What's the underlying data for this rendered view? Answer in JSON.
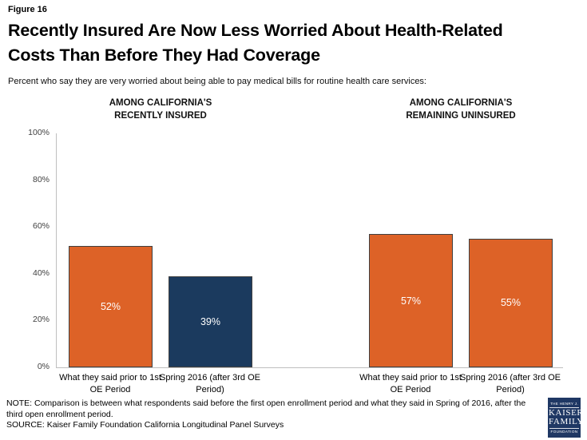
{
  "figure_label": "Figure 16",
  "title_line1": "Recently Insured Are Now Less Worried About Health-Related",
  "title_line2": "Costs Than Before They Had Coverage",
  "subtitle": "Percent who say they are very worried about being able to pay medical bills for routine health care services:",
  "colors": {
    "orange": "#dd6227",
    "navy": "#1b3a5e",
    "axis_gray": "#bfbfbf",
    "bar_border": "#404040",
    "logo_navy": "#1f3864"
  },
  "chart_data": {
    "type": "bar",
    "title": "",
    "ylabel": "",
    "xlabel": "",
    "ylim": [
      0,
      100
    ],
    "grid": false,
    "ytick_labels": [
      "100%",
      "80%",
      "60%",
      "40%",
      "20%",
      "0%"
    ],
    "groups": [
      {
        "header_line1": "AMONG CALIFORNIA'S",
        "header_line2": "RECENTLY INSURED",
        "bars": [
          {
            "category": "What they said prior to 1st OE Period",
            "value": 52,
            "label": "52%",
            "color": "#dd6227"
          },
          {
            "category": "Spring 2016 (after 3rd OE Period)",
            "value": 39,
            "label": "39%",
            "color": "#1b3a5e"
          }
        ]
      },
      {
        "header_line1": "AMONG CALIFORNIA'S",
        "header_line2": "REMAINING UNINSURED",
        "bars": [
          {
            "category": "What they said prior to 1st OE Period",
            "value": 57,
            "label": "57%",
            "color": "#dd6227"
          },
          {
            "category": "Spring 2016 (after 3rd OE Period)",
            "value": 55,
            "label": "55%",
            "color": "#dd6227"
          }
        ]
      }
    ]
  },
  "footer": {
    "note_line1": "NOTE: Comparison is between what respondents said before the first open enrollment period and what they said in Spring of 2016, after the",
    "note_line2": "third open enrollment period.",
    "source": "SOURCE: Kaiser Family Foundation California Longitudinal Panel Surveys"
  },
  "logo": {
    "top": "THE HENRY J.",
    "name_line1": "KAISER",
    "name_line2": "FAMILY",
    "bottom": "FOUNDATION"
  }
}
